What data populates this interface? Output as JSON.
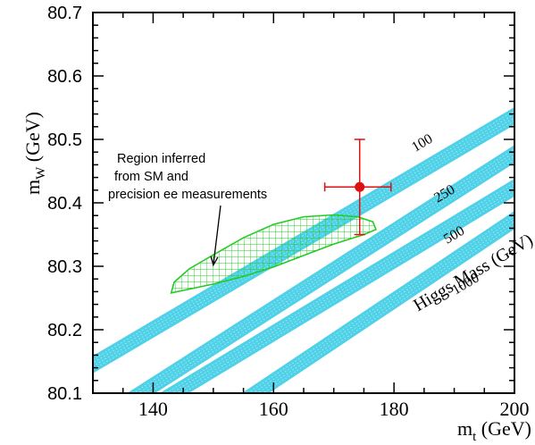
{
  "chart_data": {
    "type": "scatter",
    "xlim": [
      130,
      200
    ],
    "ylim": [
      80.1,
      80.7
    ],
    "xticks": [
      {
        "value": 140,
        "label": "140"
      },
      {
        "value": 160,
        "label": "160"
      },
      {
        "value": 180,
        "label": "180"
      },
      {
        "value": 200,
        "label": "200"
      }
    ],
    "yticks": [
      {
        "value": 80.1,
        "label": "80.1"
      },
      {
        "value": 80.2,
        "label": "80.2"
      },
      {
        "value": 80.3,
        "label": "80.3"
      },
      {
        "value": 80.4,
        "label": "80.4"
      },
      {
        "value": 80.5,
        "label": "80.5"
      },
      {
        "value": 80.6,
        "label": "80.6"
      },
      {
        "value": 80.7,
        "label": "80.7"
      }
    ],
    "xlabel": {
      "main": "m",
      "sub": "t",
      "unit": " (GeV)"
    },
    "ylabel": {
      "main": "m",
      "sub": "W",
      "unit": " (GeV)"
    },
    "higgs_bands": [
      {
        "label": "100",
        "centerline": [
          [
            130,
            80.145
          ],
          [
            200,
            80.537
          ]
        ],
        "label_at": [
          183.5,
          80.48
        ]
      },
      {
        "label": "250",
        "centerline": [
          [
            138,
            80.1
          ],
          [
            200,
            80.477
          ]
        ],
        "label_at": [
          187.2,
          80.4
        ]
      },
      {
        "label": "500",
        "centerline": [
          [
            143.5,
            80.1
          ],
          [
            200,
            80.424
          ]
        ],
        "label_at": [
          188.8,
          80.335
        ]
      },
      {
        "label": "1000",
        "centerline": [
          [
            157,
            80.1
          ],
          [
            200,
            80.373
          ]
        ],
        "label_at": [
          190.2,
          80.255
        ]
      }
    ],
    "band_color": "#4fd1e8",
    "band_axis_label": {
      "text": "Higgs Mass (GeV)",
      "at": [
        182,
        80.26
      ]
    },
    "sm_region": {
      "color": "#22cc22",
      "outline": [
        [
          143,
          80.258
        ],
        [
          145,
          80.262
        ],
        [
          150,
          80.272
        ],
        [
          155,
          80.284
        ],
        [
          160,
          80.299
        ],
        [
          165,
          80.317
        ],
        [
          170,
          80.335
        ],
        [
          175,
          80.35
        ],
        [
          177,
          80.358
        ],
        [
          176.5,
          80.37
        ],
        [
          174,
          80.378
        ],
        [
          170,
          80.381
        ],
        [
          165,
          80.378
        ],
        [
          160,
          80.366
        ],
        [
          155,
          80.345
        ],
        [
          150,
          80.318
        ],
        [
          146,
          80.296
        ],
        [
          143.5,
          80.275
        ]
      ]
    },
    "measurement": {
      "color": "#dd1111",
      "x": 174.3,
      "y": 80.425,
      "x_err": [
        168.5,
        179.5
      ],
      "y_err": [
        80.35,
        80.5
      ]
    },
    "annotation": {
      "lines": [
        "Region inferred",
        "from SM and",
        "precision ee measurements"
      ],
      "arrow_to": [
        150,
        80.302
      ]
    }
  }
}
